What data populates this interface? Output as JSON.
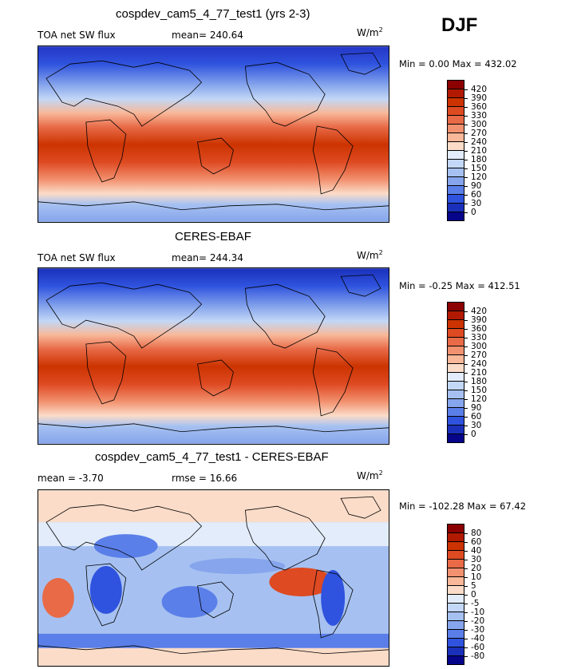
{
  "season": "DJF",
  "panels": [
    {
      "title": "cospdev_cam5_4_77_test1 (yrs 2-3)",
      "field_label": "TOA net SW flux",
      "stat_text": "mean= 240.64",
      "stat2_text": "",
      "units_base": "W/m",
      "units_exp": "2",
      "minmax": "Min =   0.00 Max = 432.02",
      "colorbar": {
        "labels": [
          "420",
          "390",
          "360",
          "330",
          "300",
          "270",
          "240",
          "210",
          "180",
          "150",
          "120",
          "90",
          "60",
          "30",
          "0"
        ],
        "colors": [
          "#8b0000",
          "#b11a00",
          "#cc3300",
          "#de4a22",
          "#e86a47",
          "#f2916f",
          "#f8b899",
          "#fbdcc8",
          "#e2ecfa",
          "#c3d7f6",
          "#a6c1f1",
          "#86a5ec",
          "#5b7fe8",
          "#2f53de",
          "#1a30bb",
          "#06058a"
        ]
      }
    },
    {
      "title": "CERES-EBAF",
      "field_label": "TOA net SW flux",
      "stat_text": "mean= 244.34",
      "stat2_text": "",
      "units_base": "W/m",
      "units_exp": "2",
      "minmax": "Min =  -0.25 Max = 412.51",
      "colorbar": {
        "labels": [
          "420",
          "390",
          "360",
          "330",
          "300",
          "270",
          "240",
          "210",
          "180",
          "150",
          "120",
          "90",
          "60",
          "30",
          "0"
        ],
        "colors": [
          "#8b0000",
          "#b11a00",
          "#cc3300",
          "#de4a22",
          "#e86a47",
          "#f2916f",
          "#f8b899",
          "#fbdcc8",
          "#e2ecfa",
          "#c3d7f6",
          "#a6c1f1",
          "#86a5ec",
          "#5b7fe8",
          "#2f53de",
          "#1a30bb",
          "#06058a"
        ]
      }
    },
    {
      "title": "cospdev_cam5_4_77_test1 - CERES-EBAF",
      "field_label": "mean =   -3.70",
      "stat_text": "rmse =   16.66",
      "stat2_text": "",
      "units_base": "W/m",
      "units_exp": "2",
      "minmax": "Min = -102.28 Max =  67.42",
      "colorbar": {
        "labels": [
          "80",
          "60",
          "40",
          "30",
          "20",
          "10",
          "5",
          "0",
          "-5",
          "-10",
          "-20",
          "-30",
          "-40",
          "-60",
          "-80"
        ],
        "colors": [
          "#8b0000",
          "#b11a00",
          "#cc3300",
          "#de4a22",
          "#e86a47",
          "#f2916f",
          "#f8b899",
          "#fbdcc8",
          "#e2ecfa",
          "#c3d7f6",
          "#a6c1f1",
          "#86a5ec",
          "#5b7fe8",
          "#2f53de",
          "#1a30bb",
          "#06058a"
        ]
      }
    }
  ]
}
